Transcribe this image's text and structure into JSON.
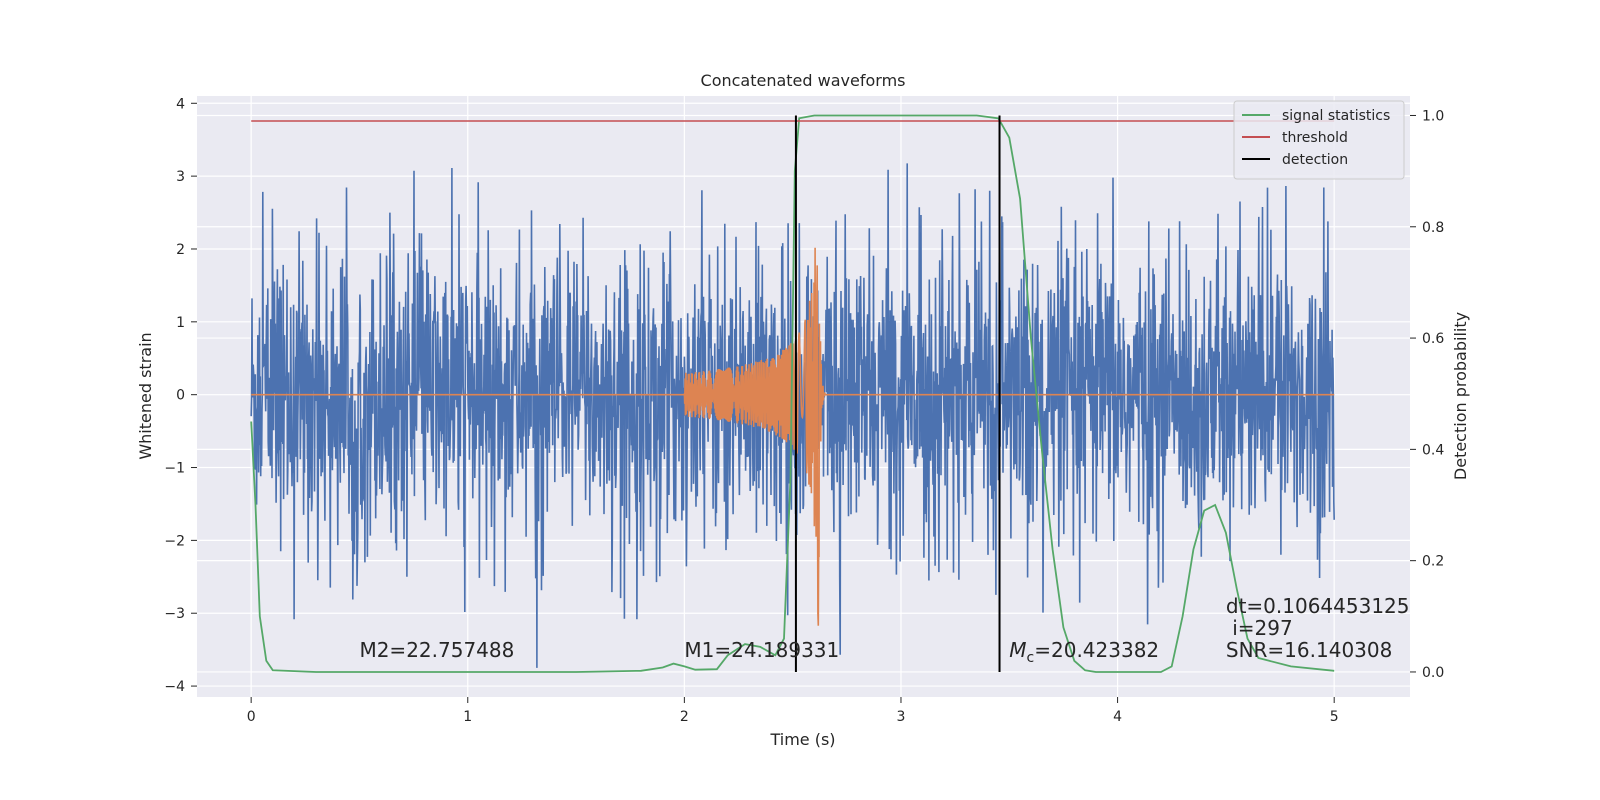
{
  "chart_data": {
    "type": "line",
    "title": "Concatenated waveforms",
    "xlabel": "Time (s)",
    "ylabel_left": "Whitened strain",
    "ylabel_right": "Detection probability",
    "xlim": [
      -0.25,
      5.35
    ],
    "ylim_left": [
      -4.15,
      4.1
    ],
    "ylim_right": [
      -0.045,
      1.035
    ],
    "x_ticks": [
      0,
      1,
      2,
      3,
      4,
      5
    ],
    "y_left_ticks": [
      -4,
      -3,
      -2,
      -1,
      0,
      1,
      2,
      3,
      4
    ],
    "y_right_ticks": [
      0.0,
      0.2,
      0.4,
      0.6,
      0.8,
      1.0
    ],
    "grid": true,
    "background": "#eaeaf2",
    "legend_position": "top-right",
    "series": [
      {
        "name": "",
        "axis": "left",
        "color": "#4c72b0",
        "kind": "noise",
        "x_range": [
          0,
          5
        ],
        "typical_amplitude": 1.0,
        "peak_amplitude": 3.75
      },
      {
        "name": "",
        "axis": "left",
        "color": "#dd8452",
        "kind": "chirp",
        "start_time": 2.0,
        "merger_time": 2.62,
        "start_amplitude": 0.3,
        "peak_amplitude": 3.4
      },
      {
        "name": "signal statistics",
        "axis": "right",
        "color": "#55a868",
        "points": [
          [
            0.0,
            0.45
          ],
          [
            0.02,
            0.3
          ],
          [
            0.04,
            0.1
          ],
          [
            0.07,
            0.02
          ],
          [
            0.1,
            0.003
          ],
          [
            0.3,
            0.0
          ],
          [
            1.5,
            0.0
          ],
          [
            1.8,
            0.002
          ],
          [
            1.9,
            0.008
          ],
          [
            1.95,
            0.015
          ],
          [
            2.0,
            0.01
          ],
          [
            2.05,
            0.004
          ],
          [
            2.15,
            0.005
          ],
          [
            2.2,
            0.03
          ],
          [
            2.28,
            0.05
          ],
          [
            2.35,
            0.045
          ],
          [
            2.42,
            0.03
          ],
          [
            2.46,
            0.06
          ],
          [
            2.49,
            0.35
          ],
          [
            2.51,
            0.9
          ],
          [
            2.53,
            0.995
          ],
          [
            2.6,
            1.0
          ],
          [
            3.2,
            1.0
          ],
          [
            3.35,
            1.0
          ],
          [
            3.45,
            0.995
          ],
          [
            3.5,
            0.96
          ],
          [
            3.55,
            0.85
          ],
          [
            3.6,
            0.6
          ],
          [
            3.65,
            0.4
          ],
          [
            3.7,
            0.22
          ],
          [
            3.75,
            0.08
          ],
          [
            3.8,
            0.02
          ],
          [
            3.85,
            0.003
          ],
          [
            3.9,
            0.0
          ],
          [
            4.2,
            0.0
          ],
          [
            4.25,
            0.01
          ],
          [
            4.3,
            0.1
          ],
          [
            4.35,
            0.22
          ],
          [
            4.4,
            0.29
          ],
          [
            4.45,
            0.3
          ],
          [
            4.5,
            0.25
          ],
          [
            4.55,
            0.15
          ],
          [
            4.6,
            0.06
          ],
          [
            4.65,
            0.025
          ],
          [
            4.7,
            0.02
          ],
          [
            4.8,
            0.01
          ],
          [
            5.0,
            0.002
          ]
        ]
      },
      {
        "name": "threshold",
        "axis": "right",
        "color": "#c44e52",
        "points": [
          [
            0,
            0.99
          ],
          [
            5,
            0.99
          ]
        ]
      },
      {
        "name": "detection",
        "axis": "right",
        "color": "#000000",
        "vlines": [
          2.515,
          3.455
        ],
        "vline_range": [
          0.0,
          1.0
        ]
      }
    ],
    "annotations": [
      {
        "text": "M2=22.757488",
        "x": 0.5,
        "y": -3.6,
        "axis": "left"
      },
      {
        "text": "M1=24.189331",
        "x": 2.0,
        "y": -3.6,
        "axis": "left"
      },
      {
        "text_italic": "M",
        "text_sub": "c",
        "text_rest": "=20.423382",
        "x": 3.5,
        "y": -3.6,
        "axis": "left"
      },
      {
        "text": "dt=0.1064453125",
        "x": 4.5,
        "y": -3.0,
        "axis": "left"
      },
      {
        "text": " i=297",
        "x": 4.5,
        "y": -3.3,
        "axis": "left"
      },
      {
        "text": "SNR=16.140308",
        "x": 4.5,
        "y": -3.6,
        "axis": "left"
      }
    ]
  }
}
